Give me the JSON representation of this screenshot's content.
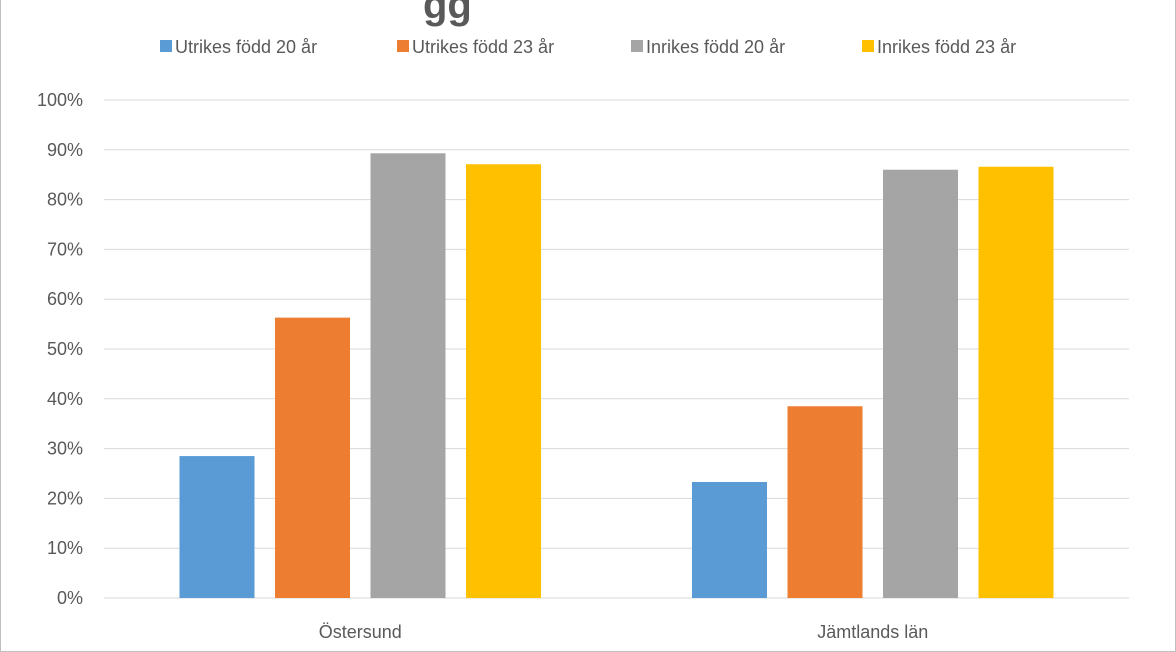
{
  "chart_data": {
    "type": "bar",
    "title": "",
    "title_visible_fragment": "gg",
    "xlabel": "",
    "ylabel": "",
    "categories": [
      "Östersund",
      "Jämtlands län"
    ],
    "series": [
      {
        "name": "Utrikes född 20 år",
        "color": "#5b9bd5",
        "values": [
          28.5,
          23.3
        ]
      },
      {
        "name": "Utrikes född 23 år",
        "color": "#ed7d31",
        "values": [
          56.3,
          38.5
        ]
      },
      {
        "name": "Inrikes född 20 år",
        "color": "#a5a5a5",
        "values": [
          89.3,
          86.0
        ]
      },
      {
        "name": "Inrikes född 23 år",
        "color": "#ffc000",
        "values": [
          87.1,
          86.6
        ]
      }
    ],
    "ylim": [
      0,
      100
    ],
    "yticks": [
      "0%",
      "10%",
      "20%",
      "30%",
      "40%",
      "50%",
      "60%",
      "70%",
      "80%",
      "90%",
      "100%"
    ],
    "grid": true,
    "legend_position": "top"
  }
}
